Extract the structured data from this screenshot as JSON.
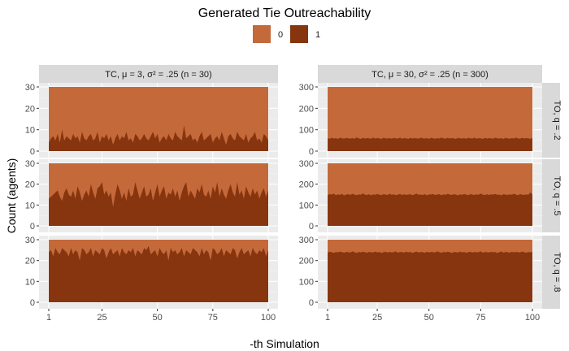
{
  "chart_data": {
    "type": "area",
    "title": "Generated Tie Outreachability",
    "xlabel": "-th Simulation",
    "ylabel": "Count (agents)",
    "legend": {
      "position": "top",
      "entries": [
        {
          "label": "0",
          "color": "#c4693a"
        },
        {
          "label": "1",
          "color": "#87350f"
        }
      ]
    },
    "x_ticks": [
      1,
      25,
      50,
      75,
      100
    ],
    "x_range": [
      1,
      100
    ],
    "columns": [
      {
        "label": "TC, μ = 3, σ² = .25 (n = 30)",
        "n": 30,
        "y_ticks": [
          0,
          10,
          20,
          30
        ]
      },
      {
        "label": "TC, μ = 30, σ² = .25 (n = 300)",
        "n": 300,
        "y_ticks": [
          0,
          100,
          200,
          300
        ]
      }
    ],
    "rows": [
      {
        "label": "TO, q = .2",
        "q": 0.2
      },
      {
        "label": "TO, q = .5",
        "q": 0.5
      },
      {
        "label": "TO, q = .8",
        "q": 0.8
      }
    ],
    "series": [
      {
        "name": "1",
        "panel": "TC, μ = 3 / TO, q = .2",
        "values": [
          4,
          6,
          7,
          5,
          8,
          4,
          10,
          5,
          7,
          6,
          5,
          8,
          6,
          7,
          4,
          9,
          6,
          5,
          7,
          8,
          5,
          6,
          9,
          4,
          7,
          6,
          8,
          5,
          7,
          3,
          6,
          8,
          5,
          7,
          6,
          9,
          5,
          6,
          4,
          8,
          7,
          5,
          6,
          8,
          6,
          5,
          7,
          9,
          6,
          8,
          4,
          6,
          7,
          5,
          8,
          6,
          5,
          9,
          7,
          6,
          5,
          12,
          6,
          7,
          8,
          5,
          6,
          4,
          7,
          9,
          5,
          6,
          7,
          8,
          4,
          6,
          7,
          5,
          9,
          6,
          3,
          7,
          8,
          6,
          5,
          9,
          7,
          6,
          5,
          8,
          4,
          6,
          7,
          9,
          5,
          6,
          4,
          8,
          7,
          5
        ]
      },
      {
        "name": "1",
        "panel": "TC, μ = 3 / TO, q = .5",
        "values": [
          13,
          14,
          15,
          16,
          17,
          14,
          12,
          16,
          18,
          15,
          14,
          17,
          13,
          19,
          16,
          12,
          15,
          17,
          14,
          20,
          16,
          13,
          18,
          19,
          21,
          15,
          17,
          14,
          16,
          9,
          15,
          20,
          17,
          13,
          16,
          12,
          18,
          14,
          15,
          21,
          17,
          13,
          16,
          19,
          14,
          15,
          18,
          12,
          16,
          20,
          14,
          17,
          19,
          13,
          16,
          15,
          18,
          14,
          17,
          12,
          16,
          19,
          21,
          14,
          17,
          15,
          13,
          18,
          16,
          20,
          15,
          14,
          17,
          13,
          19,
          16,
          21,
          14,
          18,
          15,
          13,
          17,
          20,
          16,
          14,
          21,
          15,
          17,
          13,
          19,
          16,
          14,
          18,
          15,
          17,
          13,
          16,
          18,
          14,
          17
        ]
      },
      {
        "name": "1",
        "panel": "TC, μ = 3 / TO, q = .8",
        "values": [
          24,
          25,
          22,
          26,
          24,
          23,
          26,
          25,
          24,
          22,
          26,
          23,
          25,
          24,
          20,
          26,
          25,
          23,
          24,
          26,
          22,
          25,
          24,
          23,
          26,
          25,
          21,
          24,
          26,
          23,
          24,
          25,
          22,
          26,
          24,
          23,
          25,
          24,
          26,
          22,
          25,
          24,
          23,
          26,
          25,
          27,
          23,
          24,
          25,
          22,
          26,
          24,
          23,
          25,
          20,
          26,
          24,
          25,
          23,
          24,
          26,
          22,
          25,
          24,
          23,
          26,
          25,
          24,
          22,
          26,
          23,
          25,
          24,
          20,
          26,
          25,
          23,
          24,
          26,
          22,
          25,
          24,
          23,
          26,
          25,
          21,
          24,
          26,
          23,
          24,
          25,
          22,
          26,
          24,
          23,
          25,
          24,
          26,
          22,
          25
        ]
      },
      {
        "name": "1",
        "panel": "TC, μ = 30 / TO, q = .2",
        "values": [
          60,
          58,
          62,
          59,
          61,
          57,
          63,
          60,
          58,
          62,
          60,
          59,
          61,
          58,
          64,
          60,
          57,
          62,
          59,
          61,
          60,
          58,
          63,
          59,
          61,
          60,
          57,
          62,
          60,
          59,
          61,
          58,
          62,
          60,
          59,
          63,
          58,
          61,
          60,
          57,
          62,
          59,
          61,
          60,
          58,
          63,
          60,
          59,
          61,
          57,
          62,
          60,
          58,
          61,
          59,
          63,
          60,
          58,
          62,
          59,
          61,
          60,
          57,
          62,
          60,
          59,
          61,
          58,
          62,
          60,
          59,
          63,
          58,
          61,
          60,
          57,
          62,
          59,
          61,
          60,
          58,
          63,
          60,
          59,
          61,
          57,
          62,
          60,
          58,
          61,
          59,
          63,
          60,
          58,
          62,
          59,
          61,
          60,
          57,
          62
        ]
      },
      {
        "name": "1",
        "panel": "TC, μ = 30 / TO, q = .5",
        "values": [
          148,
          152,
          150,
          155,
          147,
          151,
          149,
          153,
          146,
          150,
          152,
          148,
          154,
          150,
          147,
          151,
          149,
          156,
          150,
          148,
          152,
          146,
          151,
          149,
          153,
          150,
          147,
          152,
          150,
          148,
          154,
          149,
          151,
          147,
          150,
          153,
          148,
          151,
          149,
          150,
          152,
          147,
          151,
          155,
          149,
          150,
          148,
          152,
          146,
          151,
          150,
          153,
          148,
          150,
          152,
          147,
          151,
          149,
          154,
          150,
          148,
          152,
          150,
          146,
          151,
          149,
          153,
          150,
          147,
          152,
          150,
          148,
          151,
          149,
          155,
          150,
          147,
          152,
          148,
          151,
          150,
          153,
          149,
          150,
          146,
          152,
          150,
          148,
          151,
          149,
          154,
          150,
          147,
          152,
          150,
          148,
          151,
          149,
          160,
          150
        ]
      },
      {
        "name": "1",
        "panel": "TC, μ = 30 / TO, q = .8",
        "values": [
          238,
          242,
          240,
          236,
          241,
          239,
          243,
          240,
          237,
          241,
          240,
          238,
          244,
          240,
          236,
          241,
          239,
          242,
          240,
          237,
          241,
          240,
          238,
          243,
          239,
          241,
          236,
          240,
          242,
          238,
          241,
          239,
          240,
          244,
          237,
          241,
          240,
          238,
          242,
          239,
          241,
          236,
          240,
          243,
          238,
          241,
          240,
          237,
          242,
          239,
          241,
          240,
          238,
          244,
          240,
          237,
          241,
          239,
          242,
          240,
          236,
          241,
          240,
          238,
          243,
          239,
          241,
          237,
          240,
          242,
          238,
          241,
          239,
          240,
          244,
          237,
          241,
          240,
          238,
          242,
          239,
          241,
          236,
          240,
          243,
          238,
          241,
          240,
          237,
          242,
          239,
          241,
          240,
          238,
          243,
          240,
          237,
          241,
          239,
          242
        ]
      }
    ]
  }
}
